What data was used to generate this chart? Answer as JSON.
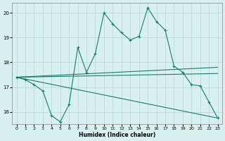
{
  "xlabel": "Humidex (Indice chaleur)",
  "hourly_x": [
    0,
    1,
    2,
    3,
    4,
    5,
    6,
    7,
    8,
    9,
    10,
    11,
    12,
    13,
    14,
    15,
    16,
    17,
    18,
    19,
    20,
    21,
    22,
    23
  ],
  "hourly_y": [
    17.4,
    17.3,
    17.1,
    16.85,
    15.85,
    15.6,
    16.3,
    18.6,
    17.6,
    18.35,
    20.0,
    19.55,
    19.2,
    18.9,
    19.05,
    20.2,
    19.65,
    19.3,
    17.85,
    17.6,
    17.1,
    17.05,
    16.4,
    15.75
  ],
  "trend1_x": [
    0,
    23
  ],
  "trend1_y": [
    17.4,
    17.8
  ],
  "trend2_x": [
    0,
    23
  ],
  "trend2_y": [
    17.4,
    17.55
  ],
  "trend3_x": [
    0,
    23
  ],
  "trend3_y": [
    17.4,
    15.75
  ],
  "ylim": [
    15.5,
    20.4
  ],
  "xlim": [
    -0.5,
    23.5
  ],
  "yticks": [
    16,
    17,
    18,
    19,
    20
  ],
  "xticks": [
    0,
    1,
    2,
    3,
    4,
    5,
    6,
    7,
    8,
    9,
    10,
    11,
    12,
    13,
    14,
    15,
    16,
    17,
    18,
    19,
    20,
    21,
    22,
    23
  ],
  "color": "#1a7a6e",
  "bg_color": "#d8f0f0",
  "grid_color": "#b8d4d4"
}
